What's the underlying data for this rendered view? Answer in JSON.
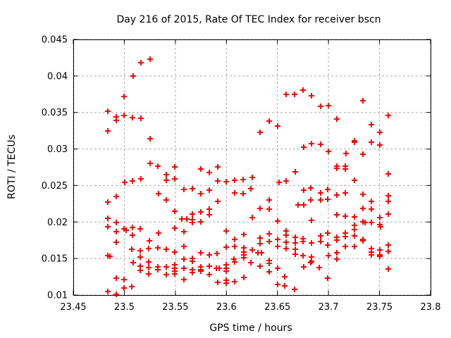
{
  "figure": {
    "background": "#ffffff"
  },
  "chart_data": {
    "type": "scatter",
    "title": "Day 216 of 2015, Rate Of TEC Index for receiver bscn",
    "xlabel": "GPS time / hours",
    "ylabel": "ROTI / TECUs",
    "xlim": [
      23.45,
      23.8
    ],
    "ylim": [
      0.01,
      0.045
    ],
    "xticks": [
      {
        "v": 23.45,
        "label": "23.45"
      },
      {
        "v": 23.5,
        "label": "23.5"
      },
      {
        "v": 23.55,
        "label": "23.55"
      },
      {
        "v": 23.6,
        "label": "23.6"
      },
      {
        "v": 23.65,
        "label": "23.65"
      },
      {
        "v": 23.7,
        "label": "23.7"
      },
      {
        "v": 23.75,
        "label": "23.75"
      },
      {
        "v": 23.8,
        "label": "23.8"
      }
    ],
    "yticks": [
      {
        "v": 0.01,
        "label": "0.01"
      },
      {
        "v": 0.015,
        "label": "0.015"
      },
      {
        "v": 0.02,
        "label": "0.02"
      },
      {
        "v": 0.025,
        "label": "0.025"
      },
      {
        "v": 0.03,
        "label": "0.03"
      },
      {
        "v": 0.035,
        "label": "0.035"
      },
      {
        "v": 0.04,
        "label": "0.04"
      },
      {
        "v": 0.045,
        "label": "0.045"
      }
    ],
    "grid": true,
    "legend": "none",
    "marker": {
      "shape": "plus",
      "color": "#ff0000",
      "size": 8
    },
    "grid_color": "#a9a9a9",
    "axis_color": "#000000",
    "series": [
      {
        "name": "ROTI",
        "points": [
          [
            23.5165,
            0.0418
          ],
          [
            23.5253,
            0.0423
          ],
          [
            23.5087,
            0.04
          ],
          [
            23.4999,
            0.0372
          ],
          [
            23.4838,
            0.0352
          ],
          [
            23.4923,
            0.0344
          ],
          [
            23.4923,
            0.0339
          ],
          [
            23.4999,
            0.0346
          ],
          [
            23.5082,
            0.0343
          ],
          [
            23.5165,
            0.0342
          ],
          [
            23.4838,
            0.0325
          ],
          [
            23.5253,
            0.0314
          ],
          [
            23.5253,
            0.028
          ],
          [
            23.5325,
            0.0276
          ],
          [
            23.6586,
            0.0375
          ],
          [
            23.667,
            0.0375
          ],
          [
            23.6753,
            0.0381
          ],
          [
            23.6835,
            0.0373
          ],
          [
            23.642,
            0.0338
          ],
          [
            23.6503,
            0.0331
          ],
          [
            23.633,
            0.0323
          ],
          [
            23.676,
            0.0302
          ],
          [
            23.6835,
            0.0307
          ],
          [
            23.692,
            0.0358
          ],
          [
            23.7,
            0.0359
          ],
          [
            23.7337,
            0.0366
          ],
          [
            23.7586,
            0.0346
          ],
          [
            23.7085,
            0.0341
          ],
          [
            23.7418,
            0.0333
          ],
          [
            23.7503,
            0.0323
          ],
          [
            23.7256,
            0.0311
          ],
          [
            23.7256,
            0.0309
          ],
          [
            23.7418,
            0.0309
          ],
          [
            23.692,
            0.0306
          ],
          [
            23.7503,
            0.0305
          ],
          [
            23.7,
            0.0297
          ],
          [
            23.717,
            0.0294
          ],
          [
            23.7337,
            0.0293
          ],
          [
            23.7085,
            0.0276
          ],
          [
            23.7163,
            0.0276
          ],
          [
            23.5006,
            0.0254
          ],
          [
            23.5082,
            0.0256
          ],
          [
            23.5163,
            0.0259
          ],
          [
            23.5332,
            0.0239
          ],
          [
            23.4923,
            0.0235
          ],
          [
            23.4838,
            0.0227
          ],
          [
            23.4838,
            0.0205
          ],
          [
            23.4923,
            0.0199
          ],
          [
            23.4838,
            0.0194
          ],
          [
            23.4923,
            0.0187
          ],
          [
            23.4999,
            0.0191
          ],
          [
            23.502,
            0.0189
          ],
          [
            23.5082,
            0.0193
          ],
          [
            23.5158,
            0.0191
          ],
          [
            23.5082,
            0.0182
          ],
          [
            23.4923,
            0.0172
          ],
          [
            23.5332,
            0.0185
          ],
          [
            23.5248,
            0.0174
          ],
          [
            23.5241,
            0.0164
          ],
          [
            23.5325,
            0.0165
          ],
          [
            23.5075,
            0.0163
          ],
          [
            23.5158,
            0.0161
          ],
          [
            23.4838,
            0.0154
          ],
          [
            23.486,
            0.0153
          ],
          [
            23.5158,
            0.0152
          ],
          [
            23.5089,
            0.0144
          ],
          [
            23.5241,
            0.0145
          ],
          [
            23.5158,
            0.014
          ],
          [
            23.5241,
            0.0138
          ],
          [
            23.5158,
            0.0134
          ],
          [
            23.5241,
            0.0129
          ],
          [
            23.5325,
            0.0139
          ],
          [
            23.5325,
            0.0135
          ],
          [
            23.4923,
            0.0123
          ],
          [
            23.4999,
            0.0121
          ],
          [
            23.4999,
            0.011
          ],
          [
            23.5075,
            0.0112
          ],
          [
            23.4838,
            0.0105
          ],
          [
            23.4923,
            0.0101
          ],
          [
            23.5491,
            0.0275
          ],
          [
            23.5748,
            0.0273
          ],
          [
            23.5831,
            0.0268
          ],
          [
            23.5914,
            0.0275
          ],
          [
            23.5408,
            0.0265
          ],
          [
            23.5408,
            0.0257
          ],
          [
            23.5491,
            0.0259
          ],
          [
            23.5914,
            0.0256
          ],
          [
            23.5997,
            0.0255
          ],
          [
            23.608,
            0.0257
          ],
          [
            23.6163,
            0.0258
          ],
          [
            23.6253,
            0.0261
          ],
          [
            23.5581,
            0.0245
          ],
          [
            23.5664,
            0.0246
          ],
          [
            23.5748,
            0.0239
          ],
          [
            23.5831,
            0.0244
          ],
          [
            23.608,
            0.024
          ],
          [
            23.6163,
            0.0239
          ],
          [
            23.6239,
            0.0246
          ],
          [
            23.5408,
            0.023
          ],
          [
            23.5914,
            0.0228
          ],
          [
            23.5491,
            0.0215
          ],
          [
            23.5664,
            0.0211
          ],
          [
            23.5748,
            0.0214
          ],
          [
            23.5831,
            0.0218
          ],
          [
            23.5831,
            0.021
          ],
          [
            23.5565,
            0.0204
          ],
          [
            23.561,
            0.0204
          ],
          [
            23.5664,
            0.0203
          ],
          [
            23.5664,
            0.0199
          ],
          [
            23.5748,
            0.02
          ],
          [
            23.6253,
            0.0206
          ],
          [
            23.5491,
            0.0192
          ],
          [
            23.5581,
            0.0187
          ],
          [
            23.5997,
            0.0188
          ],
          [
            23.608,
            0.0176
          ],
          [
            23.617,
            0.0183
          ],
          [
            23.5581,
            0.0167
          ],
          [
            23.5997,
            0.0166
          ],
          [
            23.608,
            0.0167
          ],
          [
            23.617,
            0.0165
          ],
          [
            23.6253,
            0.0162
          ],
          [
            23.5408,
            0.0163
          ],
          [
            23.5491,
            0.0159
          ],
          [
            23.5748,
            0.0158
          ],
          [
            23.5831,
            0.0155
          ],
          [
            23.5907,
            0.0157
          ],
          [
            23.5581,
            0.0149
          ],
          [
            23.5664,
            0.015
          ],
          [
            23.5664,
            0.0146
          ],
          [
            23.6073,
            0.0149
          ],
          [
            23.608,
            0.0145
          ],
          [
            23.617,
            0.0159
          ],
          [
            23.617,
            0.0155
          ],
          [
            23.617,
            0.0151
          ],
          [
            23.5408,
            0.0139
          ],
          [
            23.5491,
            0.0141
          ],
          [
            23.5491,
            0.0137
          ],
          [
            23.5491,
            0.0133
          ],
          [
            23.5408,
            0.0128
          ],
          [
            23.5491,
            0.0129
          ],
          [
            23.5581,
            0.0137
          ],
          [
            23.5664,
            0.0135
          ],
          [
            23.5664,
            0.0131
          ],
          [
            23.5748,
            0.0139
          ],
          [
            23.5748,
            0.0135
          ],
          [
            23.5748,
            0.0133
          ],
          [
            23.5831,
            0.014
          ],
          [
            23.59,
            0.0137
          ],
          [
            23.593,
            0.0137
          ],
          [
            23.5831,
            0.0128
          ],
          [
            23.5997,
            0.0141
          ],
          [
            23.5997,
            0.0137
          ],
          [
            23.5997,
            0.0133
          ],
          [
            23.5581,
            0.0121
          ],
          [
            23.5914,
            0.0117
          ],
          [
            23.5997,
            0.012
          ],
          [
            23.5997,
            0.0116
          ],
          [
            23.608,
            0.0118
          ],
          [
            23.617,
            0.0124
          ],
          [
            23.6676,
            0.0269
          ],
          [
            23.6517,
            0.0254
          ],
          [
            23.6586,
            0.0256
          ],
          [
            23.7085,
            0.0274
          ],
          [
            23.676,
            0.0244
          ],
          [
            23.6828,
            0.0247
          ],
          [
            23.692,
            0.024
          ],
          [
            23.6995,
            0.0245
          ],
          [
            23.7085,
            0.0237
          ],
          [
            23.642,
            0.023
          ],
          [
            23.6828,
            0.023
          ],
          [
            23.692,
            0.023
          ],
          [
            23.6995,
            0.0231
          ],
          [
            23.633,
            0.0219
          ],
          [
            23.642,
            0.0218
          ],
          [
            23.67,
            0.0223
          ],
          [
            23.676,
            0.0223
          ],
          [
            23.7085,
            0.021
          ],
          [
            23.6503,
            0.0201
          ],
          [
            23.6835,
            0.0202
          ],
          [
            23.6586,
            0.0188
          ],
          [
            23.6586,
            0.0182
          ],
          [
            23.642,
            0.0184
          ],
          [
            23.633,
            0.0178
          ],
          [
            23.642,
            0.0173
          ],
          [
            23.633,
            0.017
          ],
          [
            23.6503,
            0.0176
          ],
          [
            23.6503,
            0.0167
          ],
          [
            23.6586,
            0.0172
          ],
          [
            23.6586,
            0.0164
          ],
          [
            23.6676,
            0.0179
          ],
          [
            23.6676,
            0.0171
          ],
          [
            23.6676,
            0.0163
          ],
          [
            23.6676,
            0.0156
          ],
          [
            23.6753,
            0.0177
          ],
          [
            23.6753,
            0.0173
          ],
          [
            23.6753,
            0.0154
          ],
          [
            23.6835,
            0.0171
          ],
          [
            23.6835,
            0.0152
          ],
          [
            23.6835,
            0.0146
          ],
          [
            23.692,
            0.0181
          ],
          [
            23.692,
            0.0173
          ],
          [
            23.6995,
            0.0185
          ],
          [
            23.6995,
            0.0168
          ],
          [
            23.7002,
            0.0154
          ],
          [
            23.7085,
            0.0179
          ],
          [
            23.7085,
            0.0175
          ],
          [
            23.7085,
            0.0158
          ],
          [
            23.7085,
            0.0149
          ],
          [
            23.631,
            0.0158
          ],
          [
            23.6345,
            0.0158
          ],
          [
            23.633,
            0.014
          ],
          [
            23.642,
            0.0147
          ],
          [
            23.642,
            0.0143
          ],
          [
            23.642,
            0.0132
          ],
          [
            23.6503,
            0.0137
          ],
          [
            23.676,
            0.0139
          ],
          [
            23.6828,
            0.0144
          ],
          [
            23.6912,
            0.0138
          ],
          [
            23.624,
            0.0144
          ],
          [
            23.6572,
            0.0125
          ],
          [
            23.6503,
            0.0114
          ],
          [
            23.6572,
            0.0113
          ],
          [
            23.6669,
            0.0108
          ],
          [
            23.6995,
            0.0123
          ],
          [
            23.7168,
            0.0273
          ],
          [
            23.7584,
            0.0266
          ],
          [
            23.7251,
            0.0257
          ],
          [
            23.7168,
            0.024
          ],
          [
            23.7335,
            0.0238
          ],
          [
            23.7584,
            0.0236
          ],
          [
            23.7584,
            0.0228
          ],
          [
            23.7418,
            0.0228
          ],
          [
            23.7335,
            0.0219
          ],
          [
            23.7418,
            0.0218
          ],
          [
            23.7584,
            0.0211
          ],
          [
            23.7168,
            0.0208
          ],
          [
            23.7251,
            0.0207
          ],
          [
            23.7335,
            0.02
          ],
          [
            23.736,
            0.0199
          ],
          [
            23.7418,
            0.0199
          ],
          [
            23.75,
            0.0206
          ],
          [
            23.75,
            0.0196
          ],
          [
            23.7507,
            0.0194
          ],
          [
            23.7251,
            0.0195
          ],
          [
            23.7251,
            0.019
          ],
          [
            23.7168,
            0.0185
          ],
          [
            23.7168,
            0.018
          ],
          [
            23.7251,
            0.0181
          ],
          [
            23.7335,
            0.0176
          ],
          [
            23.7335,
            0.0174
          ],
          [
            23.7168,
            0.0167
          ],
          [
            23.7251,
            0.0167
          ],
          [
            23.7584,
            0.0168
          ],
          [
            23.7584,
            0.016
          ],
          [
            23.7418,
            0.0164
          ],
          [
            23.7418,
            0.0159
          ],
          [
            23.7418,
            0.0155
          ],
          [
            23.75,
            0.0162
          ],
          [
            23.75,
            0.0155
          ],
          [
            23.75,
            0.0153
          ],
          [
            23.7584,
            0.0136
          ]
        ]
      }
    ]
  }
}
